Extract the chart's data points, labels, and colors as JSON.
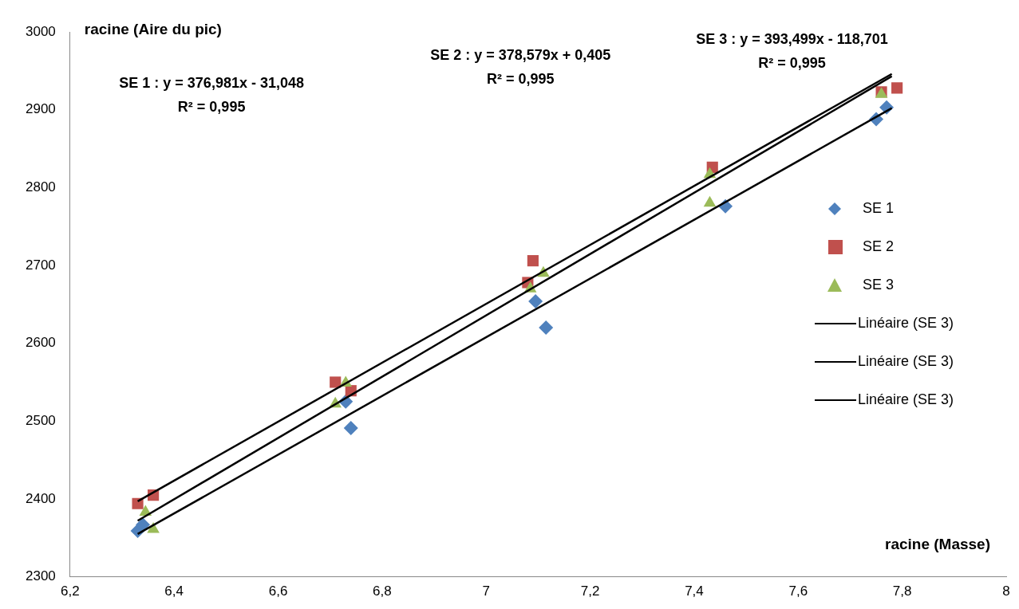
{
  "chart_data": {
    "type": "scatter",
    "xlabel": "racine (Masse)",
    "ylabel": "racine (Aire du pic)",
    "xlim": [
      6.2,
      8
    ],
    "xticks": [
      {
        "value": 6.2,
        "label": "6,2"
      },
      {
        "value": 6.4,
        "label": "6,4"
      },
      {
        "value": 6.6,
        "label": "6,6"
      },
      {
        "value": 6.8,
        "label": "6,8"
      },
      7,
      {
        "value": 7.2,
        "label": "7,2"
      },
      {
        "value": 7.4,
        "label": "7,4"
      },
      {
        "value": 7.6,
        "label": "7,6"
      },
      {
        "value": 7.8,
        "label": "7,8"
      },
      8
    ],
    "ylim": [
      2300,
      3000
    ],
    "yticks": [
      2300,
      2400,
      2500,
      2600,
      2700,
      2800,
      2900,
      3000
    ],
    "grid": false,
    "legend": "right",
    "annotations": [
      "SE 1 : y = 376,981x - 31,048\nR² = 0,995",
      "SE 2 : y = 378,579x + 0,405\nR² = 0,995",
      "SE 3 : y = 393,499x - 118,701\nR² = 0,995"
    ],
    "series": [
      {
        "name": "SE 1",
        "marker": "diamond",
        "color": "#4f81bd",
        "x": [
          6.33,
          6.34,
          6.73,
          6.74,
          7.095,
          7.115,
          7.46,
          7.75,
          7.77
        ],
        "values": [
          2359,
          2367,
          2525,
          2491,
          2654,
          2620,
          2776,
          2888,
          2903
        ]
      },
      {
        "name": "SE 2",
        "marker": "square",
        "color": "#c0504d",
        "x": [
          6.33,
          6.36,
          6.71,
          6.74,
          7.08,
          7.09,
          7.435,
          7.76,
          7.79
        ],
        "values": [
          2394,
          2405,
          2550,
          2539,
          2678,
          2706,
          2826,
          2923,
          2928
        ]
      },
      {
        "name": "SE 3",
        "marker": "triangle",
        "color": "#9bbb59",
        "x": [
          6.345,
          6.36,
          6.71,
          6.73,
          7.085,
          7.11,
          7.43,
          7.43,
          7.76
        ],
        "values": [
          2383,
          2361,
          2522,
          2549,
          2670,
          2690,
          2780,
          2817,
          2920
        ]
      },
      {
        "name": "Linéaire (SE 3)",
        "type": "line",
        "marker": "none",
        "color": "#000000",
        "x": [
          6.33,
          7.78
        ],
        "values": [
          2355,
          2902
        ]
      },
      {
        "name": "Linéaire (SE 3)",
        "type": "line",
        "marker": "none",
        "color": "#000000",
        "x": [
          6.33,
          7.78
        ],
        "values": [
          2397,
          2946
        ]
      },
      {
        "name": "Linéaire (SE 3)",
        "type": "line",
        "marker": "none",
        "color": "#000000",
        "x": [
          6.33,
          7.78
        ],
        "values": [
          2372,
          2943
        ]
      }
    ]
  }
}
